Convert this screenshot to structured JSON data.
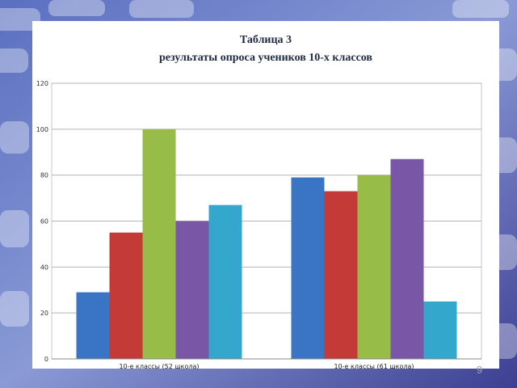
{
  "slide": {
    "title_line1": "Таблица 3",
    "title_line2": "результаты опроса учеников 10-х классов",
    "page_number": "9"
  },
  "chart_data": {
    "type": "bar",
    "categories": [
      "10-е классы (52 школа)",
      "10-е классы (61 школа)"
    ],
    "series": [
      {
        "color": "#3a74c4",
        "values": [
          29,
          79
        ]
      },
      {
        "color": "#c43a36",
        "values": [
          55,
          73
        ]
      },
      {
        "color": "#98bc48",
        "values": [
          100,
          80
        ]
      },
      {
        "color": "#7a56a6",
        "values": [
          60,
          87
        ]
      },
      {
        "color": "#34a8cc",
        "values": [
          67,
          25
        ]
      }
    ],
    "yticks": [
      "0",
      "20",
      "40",
      "60",
      "80",
      "100",
      "120"
    ],
    "ylim": [
      0,
      120
    ],
    "grid": true,
    "legend": "none",
    "title": "",
    "xlabel": "",
    "ylabel": ""
  }
}
